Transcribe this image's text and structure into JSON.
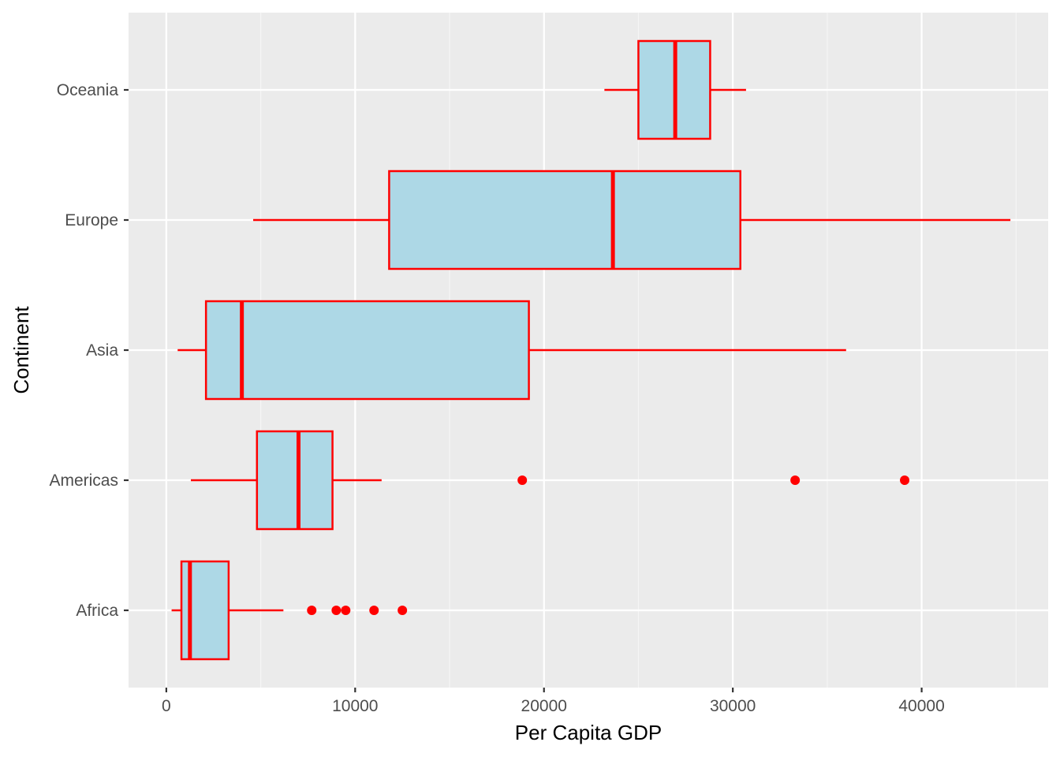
{
  "chart_data": {
    "type": "boxplot",
    "orientation": "horizontal",
    "title": "",
    "xlabel": "Per Capita GDP",
    "ylabel": "Continent",
    "xlim": [
      -2000,
      46700
    ],
    "x_ticks": [
      0,
      10000,
      20000,
      30000,
      40000
    ],
    "x_tick_labels": [
      "0",
      "10000",
      "20000",
      "30000",
      "40000"
    ],
    "categories": [
      "Africa",
      "Americas",
      "Asia",
      "Europe",
      "Oceania"
    ],
    "boxes": [
      {
        "category": "Africa",
        "whisker_low": 280,
        "q1": 800,
        "median": 1250,
        "q3": 3300,
        "whisker_high": 6200,
        "outliers": [
          7700,
          9000,
          9500,
          11000,
          12500
        ]
      },
      {
        "category": "Americas",
        "whisker_low": 1300,
        "q1": 4800,
        "median": 7000,
        "q3": 8800,
        "whisker_high": 11400,
        "outliers": [
          18850,
          33300,
          39100
        ]
      },
      {
        "category": "Asia",
        "whisker_low": 600,
        "q1": 2100,
        "median": 4000,
        "q3": 19200,
        "whisker_high": 36000,
        "outliers": []
      },
      {
        "category": "Europe",
        "whisker_low": 4600,
        "q1": 11800,
        "median": 23650,
        "q3": 30400,
        "whisker_high": 44700,
        "outliers": []
      },
      {
        "category": "Oceania",
        "whisker_low": 23200,
        "q1": 25000,
        "median": 26950,
        "q3": 28800,
        "whisker_high": 30700,
        "outliers": []
      }
    ],
    "grid": true,
    "legend": "none",
    "colors": {
      "panel_background": "#ebebeb",
      "grid_major": "#ffffff",
      "grid_minor": "#f5f5f5",
      "box_fill": "#add8e6",
      "box_outline": "#ff0000",
      "outlier": "#ff0000"
    }
  }
}
